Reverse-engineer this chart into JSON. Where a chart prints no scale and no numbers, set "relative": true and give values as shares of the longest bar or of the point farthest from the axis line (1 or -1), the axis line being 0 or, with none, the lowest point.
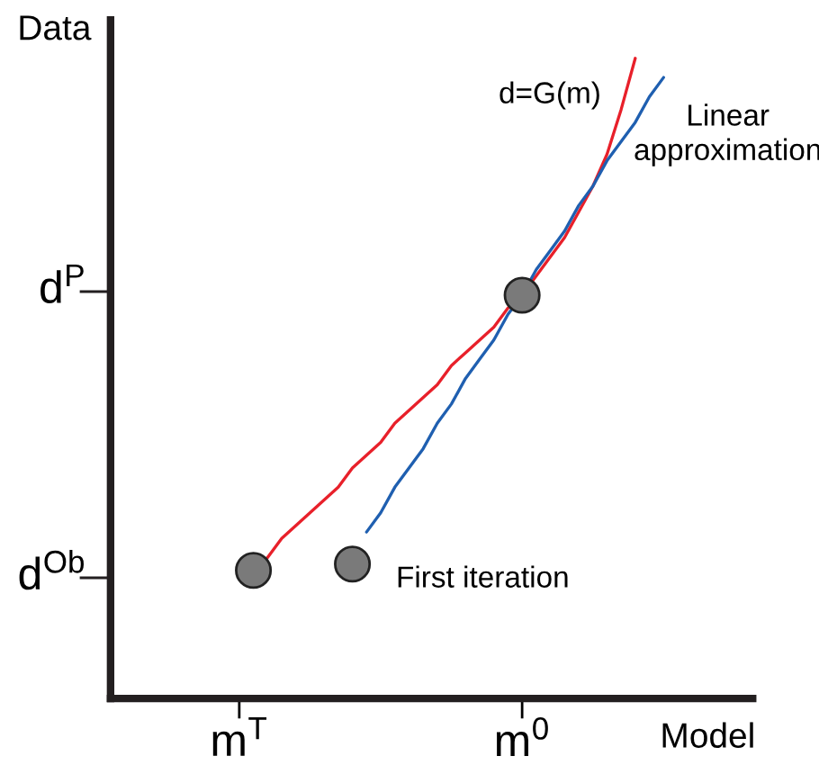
{
  "chart_data": {
    "type": "line",
    "xlabel": "Model",
    "ylabel": "Data",
    "relative": true,
    "grid": false,
    "legend": false,
    "categories": [
      null,
      null,
      null,
      null,
      null,
      null,
      null,
      null,
      "m$^{T}$",
      null,
      null,
      null,
      null,
      null,
      null,
      null,
      null,
      null,
      null,
      null,
      null,
      null,
      null,
      null,
      null,
      null,
      null,
      null,
      "m$^{0}$",
      null,
      null,
      null,
      null,
      null,
      null,
      null,
      null,
      null,
      null,
      null,
      null,
      null,
      null,
      null,
      null
    ],
    "series": [
      {
        "color": "#e8202a",
        "values": [
          null,
          null,
          null,
          null,
          null,
          null,
          null,
          null,
          null,
          0.2,
          0.22,
          0.25,
          0.27,
          0.29,
          0.31,
          0.33,
          0.36,
          0.38,
          0.4,
          0.43,
          0.45,
          0.47,
          0.49,
          0.52,
          0.54,
          0.56,
          0.58,
          0.61,
          0.63,
          0.66,
          0.69,
          0.72,
          0.76,
          0.8,
          0.85,
          0.92,
          1.0,
          null,
          null,
          null,
          null,
          null,
          null,
          null,
          null
        ]
      },
      {
        "color": "#1f5fb0",
        "values": [
          null,
          null,
          null,
          null,
          null,
          null,
          null,
          null,
          null,
          null,
          null,
          null,
          null,
          null,
          null,
          null,
          null,
          0.26,
          0.29,
          0.33,
          0.36,
          0.39,
          0.43,
          0.46,
          0.5,
          0.53,
          0.56,
          0.6,
          0.63,
          0.67,
          0.7,
          0.73,
          0.77,
          0.8,
          0.84,
          0.87,
          0.9,
          0.94,
          0.97,
          null,
          null,
          null,
          null,
          null,
          null
        ]
      },
      {
        "type": "scatter",
        "color": "#7a7a7a",
        "marker": "circle",
        "values": [
          null,
          null,
          null,
          null,
          null,
          null,
          null,
          null,
          null,
          0.2,
          null,
          null,
          null,
          null,
          null,
          null,
          0.21,
          null,
          null,
          null,
          null,
          null,
          null,
          null,
          null,
          null,
          null,
          null,
          0.63,
          null,
          null,
          null,
          null,
          null,
          null,
          null,
          null,
          null,
          null,
          null,
          null,
          null,
          null,
          null,
          null
        ]
      }
    ],
    "annotations": [
      "d$^{Ob}$",
      "d$^{P}$",
      "d=G(m)",
      "Linear\napproximation",
      "First iteration"
    ]
  }
}
